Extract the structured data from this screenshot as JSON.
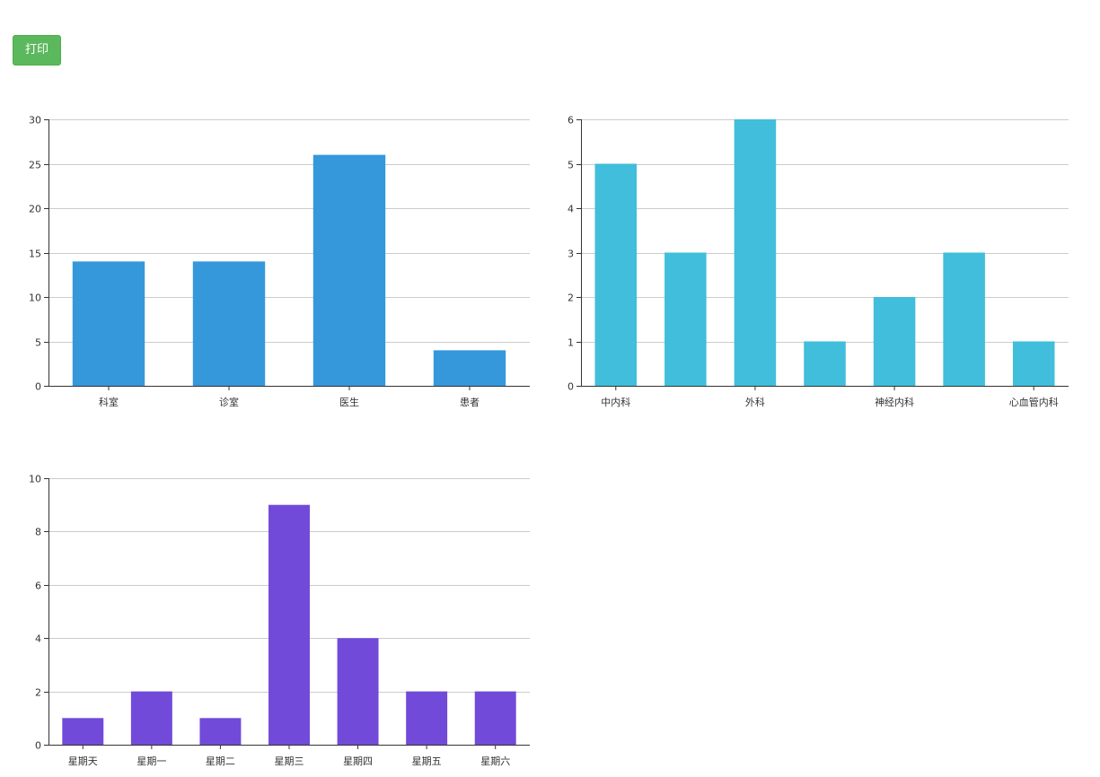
{
  "toolbar": {
    "print_label": "打印"
  },
  "chart_data": [
    {
      "type": "bar",
      "color": "#3498db",
      "categories": [
        "科室",
        "诊室",
        "医生",
        "患者"
      ],
      "category_labels": [
        "科室",
        "诊室",
        "医生",
        "患者"
      ],
      "values": [
        14,
        14,
        26,
        4
      ],
      "ylim": [
        0,
        30
      ],
      "yticks": [
        0,
        5,
        10,
        15,
        20,
        25,
        30
      ],
      "grid": true
    },
    {
      "type": "bar",
      "color": "#40bedb",
      "categories": [
        "中内科",
        "",
        "外科",
        "",
        "神经内科",
        "",
        "心血管内科"
      ],
      "category_labels": [
        "中内科",
        "",
        "外科",
        "",
        "神经内科",
        "",
        "心血管内科"
      ],
      "values": [
        5,
        3,
        6,
        1,
        2,
        3,
        1
      ],
      "ylim": [
        0,
        6
      ],
      "yticks": [
        0,
        1,
        2,
        3,
        4,
        5,
        6
      ],
      "grid": true
    },
    {
      "type": "bar",
      "color": "#714ad9",
      "categories": [
        "星期天",
        "星期一",
        "星期二",
        "星期三",
        "星期四",
        "星期五",
        "星期六"
      ],
      "category_labels": [
        "星期天",
        "星期一",
        "星期二",
        "星期三",
        "星期四",
        "星期五",
        "星期六"
      ],
      "values": [
        1,
        2,
        1,
        9,
        4,
        2,
        2
      ],
      "ylim": [
        0,
        10
      ],
      "yticks": [
        0,
        2,
        4,
        6,
        8,
        10
      ],
      "grid": true
    }
  ]
}
